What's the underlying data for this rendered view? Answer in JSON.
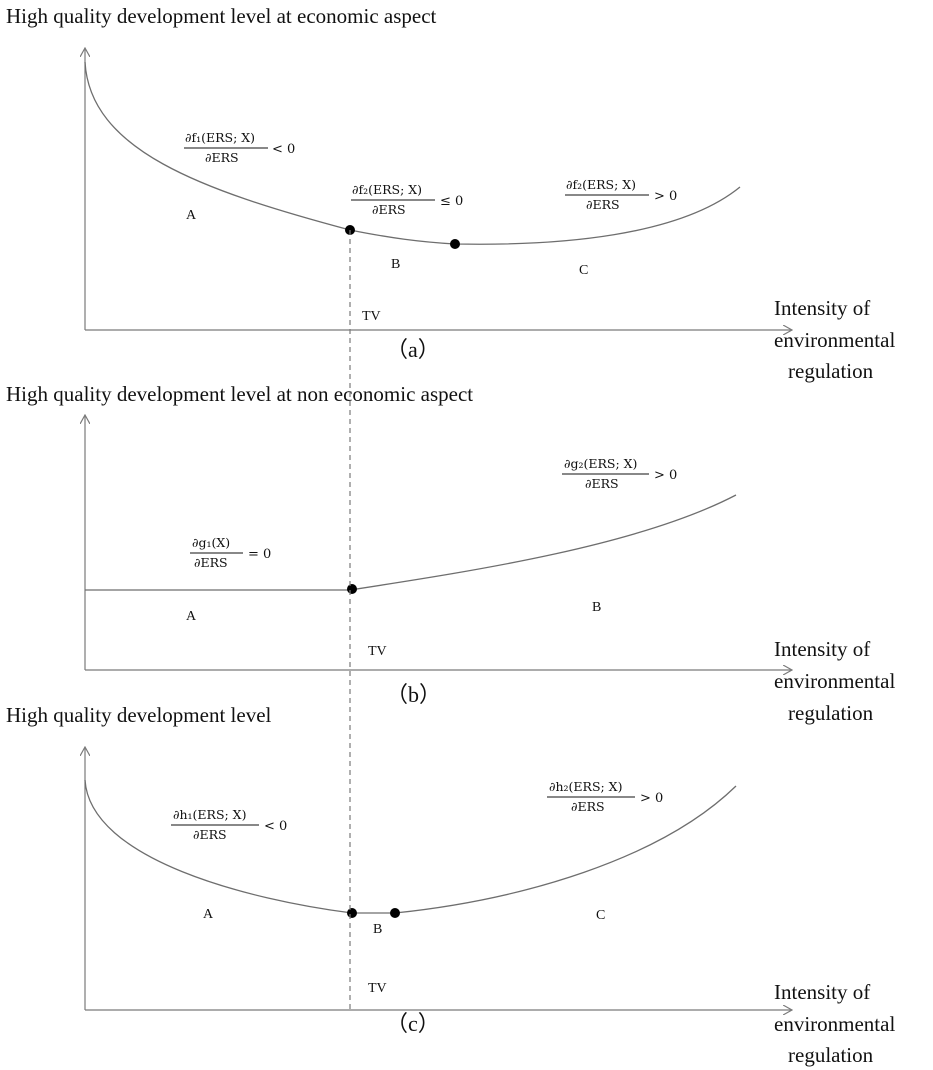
{
  "panel_a": {
    "title": "High quality development level at economic aspect",
    "caption": "（a）",
    "region_labels": [
      "A",
      "B",
      "C"
    ],
    "threshold_label": "TV",
    "x_axis_label": [
      "Intensity of",
      "environmental",
      "regulation"
    ],
    "formulas": [
      {
        "numerator": "∂f₁(ERS; X)",
        "denominator": "∂ERS",
        "relation": "< 0"
      },
      {
        "numerator": "∂f₂(ERS; X)",
        "denominator": "∂ERS",
        "relation": "≤ 0"
      },
      {
        "numerator": "∂f₂(ERS; X)",
        "denominator": "∂ERS",
        "relation": "> 0"
      }
    ]
  },
  "panel_b": {
    "title": "High quality development level at non economic aspect",
    "caption": "（b）",
    "region_labels": [
      "A",
      "B"
    ],
    "threshold_label": "TV",
    "x_axis_label": [
      "Intensity of",
      "environmental",
      "regulation"
    ],
    "formulas": [
      {
        "numerator": "∂g₁(X)",
        "denominator": "∂ERS",
        "relation": "= 0"
      },
      {
        "numerator": "∂g₂(ERS; X)",
        "denominator": "∂ERS",
        "relation": "> 0"
      }
    ]
  },
  "panel_c": {
    "title": "High quality development level",
    "caption": "（c）",
    "region_labels": [
      "A",
      "B",
      "C"
    ],
    "threshold_label": "TV",
    "x_axis_label": [
      "Intensity of",
      "environmental",
      "regulation"
    ],
    "formulas": [
      {
        "numerator": "∂h₁(ERS; X)",
        "denominator": "∂ERS",
        "relation": "< 0"
      },
      {
        "numerator": "∂h₂(ERS; X)",
        "denominator": "∂ERS",
        "relation": "> 0"
      }
    ]
  }
}
